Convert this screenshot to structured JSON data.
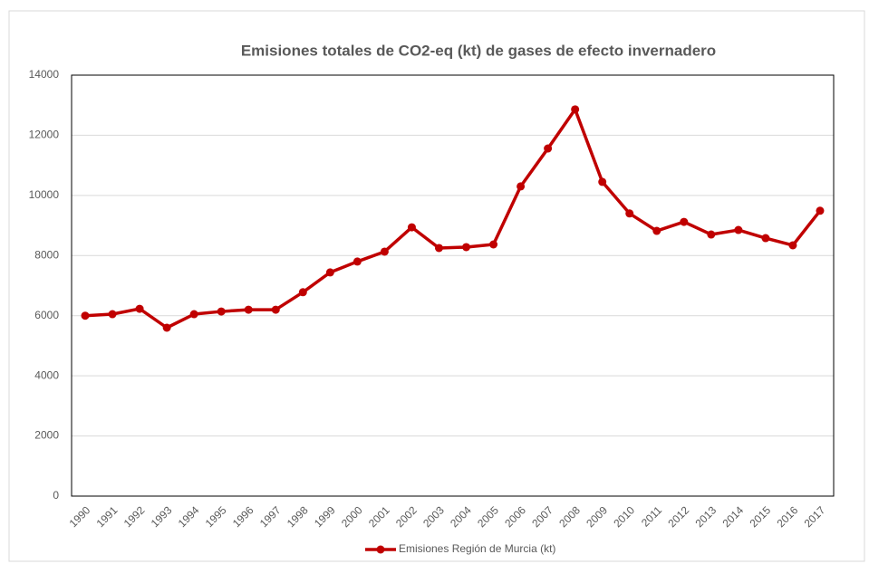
{
  "chart_data": {
    "type": "line",
    "title": "Emisiones totales de CO2-eq (kt) de gases de efecto invernadero",
    "categories": [
      "1990",
      "1991",
      "1992",
      "1993",
      "1994",
      "1995",
      "1996",
      "1997",
      "1998",
      "1999",
      "2000",
      "2001",
      "2002",
      "2003",
      "2004",
      "2005",
      "2006",
      "2007",
      "2008",
      "2009",
      "2010",
      "2011",
      "2012",
      "2013",
      "2014",
      "2015",
      "2016",
      "2017"
    ],
    "series": [
      {
        "name": "Emisiones Región de Murcia (kt)",
        "color": "#c00000",
        "values": [
          6000,
          6050,
          6230,
          5600,
          6050,
          6140,
          6200,
          6200,
          6780,
          7440,
          7800,
          8130,
          8940,
          8250,
          8280,
          8370,
          10300,
          11560,
          12860,
          10450,
          9400,
          8820,
          9120,
          8700,
          8850,
          8580,
          8340,
          9490
        ]
      }
    ],
    "ylim": [
      0,
      14000
    ],
    "yticks": [
      0,
      2000,
      4000,
      6000,
      8000,
      10000,
      12000,
      14000
    ],
    "grid": true,
    "legend": "bottom"
  }
}
